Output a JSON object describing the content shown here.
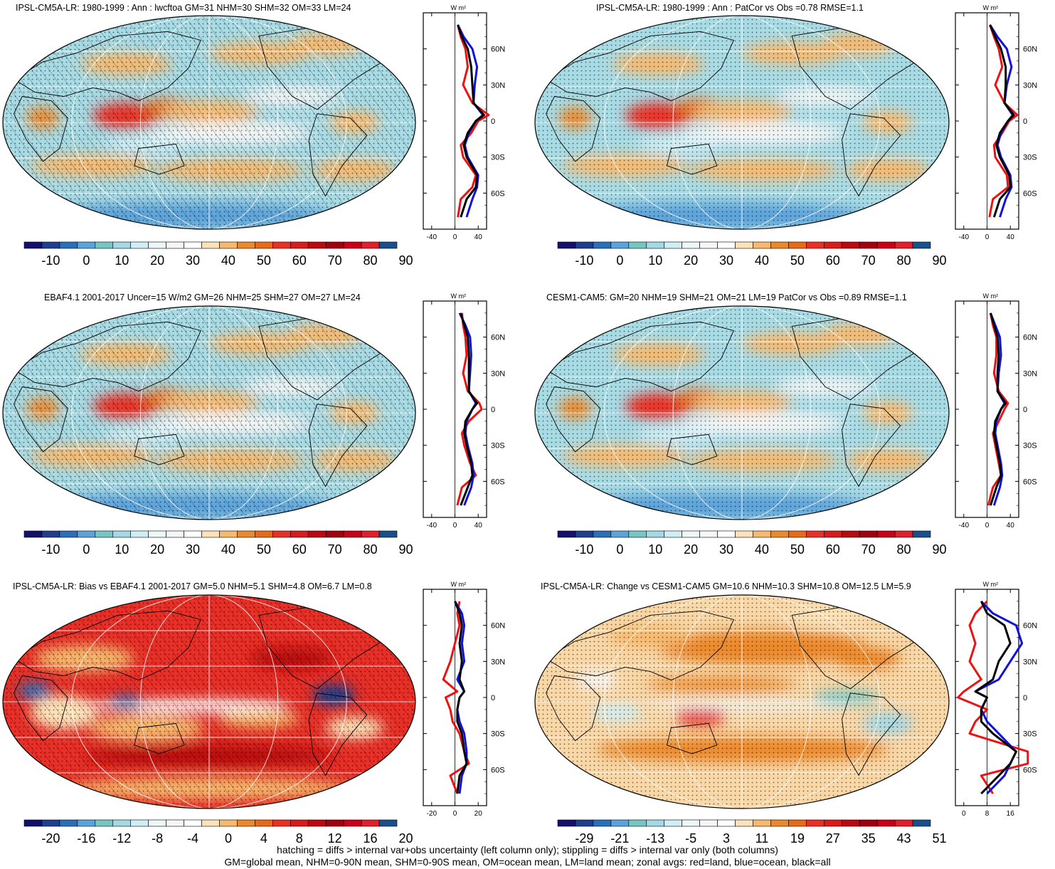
{
  "panels": [
    {
      "title": "IPSL-CM5A-LR: 1980-1999 : Ann : lwcftoa GM=31 NHM=30 SHM=32 OM=33 LM=24",
      "colorbar_ticks": [
        "-10",
        "0",
        "10",
        "20",
        "30",
        "40",
        "50",
        "60",
        "70",
        "80",
        "90"
      ],
      "profile_xticks": [
        "-40",
        "0",
        "40"
      ],
      "profile_unit": "W m²",
      "hatched": true,
      "palette": "positive"
    },
    {
      "title": "IPSL-CM5A-LR: 1980-1999 : Ann : PatCor vs Obs =0.78 RMSE=1.1",
      "colorbar_ticks": [
        "-10",
        "0",
        "10",
        "20",
        "30",
        "40",
        "50",
        "60",
        "70",
        "80",
        "90"
      ],
      "profile_xticks": [
        "-40",
        "0",
        "40"
      ],
      "profile_unit": "W m²",
      "hatched": false,
      "palette": "positive"
    },
    {
      "title": "EBAF4.1 2001-2017 Uncer=15 W/m2 GM=26 NHM=25 SHM=27 OM=27 LM=24",
      "colorbar_ticks": [
        "-10",
        "0",
        "10",
        "20",
        "30",
        "40",
        "50",
        "60",
        "70",
        "80",
        "90"
      ],
      "profile_xticks": [
        "-40",
        "0",
        "40"
      ],
      "profile_unit": "W m²",
      "hatched": true,
      "palette": "positive"
    },
    {
      "title": "CESM1-CAM5: GM=20 NHM=19 SHM=21 OM=21 LM=19 PatCor vs Obs =0.89 RMSE=1.1",
      "colorbar_ticks": [
        "-10",
        "0",
        "10",
        "20",
        "30",
        "40",
        "50",
        "60",
        "70",
        "80",
        "90"
      ],
      "profile_xticks": [
        "-40",
        "0",
        "40"
      ],
      "profile_unit": "W m²",
      "hatched": false,
      "palette": "positive"
    },
    {
      "title": "IPSL-CM5A-LR: Bias vs EBAF4.1 2001-2017 GM=5.0 NHM=5.1 SHM=4.8 OM=6.7 LM=0.8",
      "colorbar_ticks": [
        "-20",
        "-16",
        "-12",
        "-8",
        "-4",
        "0",
        "4",
        "8",
        "12",
        "16",
        "20"
      ],
      "profile_xticks": [
        "-20",
        "0",
        "20"
      ],
      "profile_unit": "W m²",
      "hatched": true,
      "palette": "bias"
    },
    {
      "title": "IPSL-CM5A-LR: Change vs CESM1-CAM5 GM=10.6 NHM=10.3 SHM=10.8 OM=12.5 LM=5.9",
      "colorbar_ticks": [
        "-29",
        "-21",
        "-13",
        "-5",
        "3",
        "11",
        "19",
        "27",
        "35",
        "43",
        "51"
      ],
      "profile_xticks": [
        "0",
        "8",
        "16"
      ],
      "profile_unit": "W m²",
      "hatched": false,
      "palette": "change"
    }
  ],
  "latitude_ticks": [
    "60N",
    "30N",
    "0",
    "30S",
    "60S"
  ],
  "colors": {
    "scale": [
      "#15106b",
      "#1f3f8c",
      "#2c6fb8",
      "#5da2d8",
      "#77c6c4",
      "#a6d7e4",
      "#d2eef5",
      "#eef6f8",
      "#f6f6f6",
      "#ffffff",
      "#fbe2b9",
      "#f6b970",
      "#ea8a2f",
      "#e66a1b",
      "#e73128",
      "#d61c1c",
      "#b80a10",
      "#a00010",
      "#c8001a",
      "#e0202c",
      "#1a4f8a"
    ],
    "land_profile": "#ee1111",
    "ocean_profile": "#1111dd",
    "all_profile": "#000000"
  },
  "chart_data": [
    {
      "type": "heatmap",
      "title": "IPSL-CM5A-LR: 1980-1999 : Ann : lwcftoa GM=31 NHM=30 SHM=32 OM=33 LM=24",
      "levels": [
        -10,
        0,
        10,
        20,
        30,
        40,
        50,
        60,
        70,
        80,
        90
      ],
      "zonal_lat": [
        80,
        70,
        60,
        45,
        30,
        15,
        5,
        0,
        -10,
        -20,
        -30,
        -45,
        -55,
        -65,
        -80
      ],
      "zonal_all": [
        5,
        12,
        22,
        28,
        30,
        32,
        50,
        36,
        22,
        15,
        20,
        38,
        36,
        20,
        10
      ],
      "zonal_ocean": [
        5,
        15,
        30,
        38,
        34,
        32,
        48,
        36,
        24,
        17,
        22,
        40,
        38,
        30,
        20
      ],
      "zonal_land": [
        5,
        10,
        18,
        22,
        14,
        30,
        58,
        40,
        28,
        10,
        14,
        36,
        30,
        10,
        5
      ]
    },
    {
      "type": "heatmap",
      "title": "IPSL-CM5A-LR: 1980-1999 : Ann : PatCor vs Obs =0.78 RMSE=1.1",
      "levels": [
        -10,
        0,
        10,
        20,
        30,
        40,
        50,
        60,
        70,
        80,
        90
      ],
      "zonal_lat": [
        80,
        70,
        60,
        45,
        30,
        15,
        5,
        0,
        -10,
        -20,
        -30,
        -45,
        -55,
        -65,
        -80
      ],
      "zonal_all": [
        5,
        14,
        24,
        32,
        32,
        30,
        46,
        36,
        22,
        16,
        22,
        38,
        40,
        22,
        12
      ],
      "zonal_ocean": [
        5,
        18,
        34,
        42,
        34,
        30,
        44,
        36,
        24,
        18,
        24,
        40,
        42,
        32,
        22
      ],
      "zonal_land": [
        5,
        12,
        20,
        26,
        14,
        30,
        52,
        38,
        26,
        12,
        14,
        34,
        36,
        10,
        4
      ]
    },
    {
      "type": "heatmap",
      "title": "EBAF4.1 2001-2017 Uncer=15 W/m2 GM=26 NHM=25 SHM=27 OM=27 LM=24",
      "levels": [
        -10,
        0,
        10,
        20,
        30,
        40,
        50,
        60,
        70,
        80,
        90
      ],
      "zonal_lat": [
        80,
        70,
        60,
        45,
        30,
        15,
        5,
        0,
        -10,
        -20,
        -30,
        -45,
        -55,
        -65,
        -80
      ],
      "zonal_all": [
        10,
        16,
        22,
        24,
        24,
        24,
        38,
        30,
        18,
        16,
        20,
        28,
        30,
        22,
        10
      ],
      "zonal_ocean": [
        8,
        18,
        26,
        28,
        26,
        24,
        36,
        30,
        20,
        18,
        22,
        30,
        32,
        28,
        16
      ],
      "zonal_land": [
        12,
        14,
        18,
        20,
        14,
        22,
        42,
        46,
        24,
        12,
        16,
        26,
        36,
        12,
        4
      ]
    },
    {
      "type": "heatmap",
      "title": "CESM1-CAM5: GM=20 NHM=19 SHM=21 OM=21 LM=19 PatCor vs Obs =0.89 RMSE=1.1",
      "levels": [
        -10,
        0,
        10,
        20,
        30,
        40,
        50,
        60,
        70,
        80,
        90
      ],
      "zonal_lat": [
        80,
        70,
        60,
        45,
        30,
        15,
        5,
        0,
        -10,
        -20,
        -30,
        -45,
        -55,
        -65,
        -80
      ],
      "zonal_all": [
        6,
        12,
        18,
        20,
        18,
        18,
        32,
        24,
        14,
        12,
        16,
        22,
        24,
        16,
        6
      ],
      "zonal_ocean": [
        6,
        14,
        22,
        24,
        20,
        18,
        30,
        24,
        16,
        14,
        18,
        24,
        26,
        22,
        12
      ],
      "zonal_land": [
        6,
        10,
        16,
        16,
        12,
        20,
        36,
        30,
        20,
        10,
        14,
        20,
        24,
        10,
        2
      ]
    },
    {
      "type": "heatmap",
      "title": "IPSL-CM5A-LR: Bias vs EBAF4.1 2001-2017 GM=5.0 NHM=5.1 SHM=4.8 OM=6.7 LM=0.8",
      "levels": [
        -20,
        -16,
        -12,
        -8,
        -4,
        0,
        4,
        8,
        12,
        16,
        20
      ],
      "zonal_lat": [
        80,
        70,
        60,
        45,
        30,
        15,
        5,
        0,
        -10,
        -20,
        -30,
        -45,
        -55,
        -65,
        -80
      ],
      "zonal_all": [
        0,
        4,
        6,
        4,
        6,
        4,
        8,
        4,
        2,
        2,
        6,
        8,
        10,
        4,
        2
      ],
      "zonal_ocean": [
        0,
        6,
        8,
        6,
        8,
        2,
        8,
        4,
        2,
        4,
        8,
        10,
        10,
        6,
        4
      ],
      "zonal_land": [
        4,
        2,
        4,
        0,
        -4,
        -10,
        2,
        -8,
        -4,
        -2,
        4,
        8,
        12,
        -4,
        2
      ]
    },
    {
      "type": "heatmap",
      "title": "IPSL-CM5A-LR: Change vs CESM1-CAM5 GM=10.6 NHM=10.3 SHM=10.8 OM=12.5 LM=5.9",
      "levels": [
        -29,
        -21,
        -13,
        -5,
        3,
        11,
        19,
        27,
        35,
        43,
        51
      ],
      "zonal_lat": [
        80,
        70,
        60,
        45,
        30,
        15,
        5,
        0,
        -10,
        -20,
        -30,
        -45,
        -55,
        -65,
        -80
      ],
      "zonal_all": [
        6,
        8,
        14,
        16,
        12,
        10,
        4,
        8,
        6,
        6,
        10,
        18,
        16,
        12,
        6
      ],
      "zonal_ocean": [
        6,
        10,
        18,
        20,
        16,
        12,
        4,
        8,
        6,
        8,
        12,
        18,
        16,
        14,
        8
      ],
      "zonal_land": [
        8,
        4,
        2,
        4,
        2,
        6,
        0,
        -2,
        8,
        4,
        2,
        22,
        22,
        6,
        10
      ]
    }
  ],
  "footer": {
    "line1": "hatching = diffs > internal var+obs uncertainty (left column only); stippling = diffs > internal var only (both columns)",
    "line2": "GM=global mean, NHM=0-90N mean, SHM=0-90S mean, OM=ocean mean, LM=land mean; zonal avgs: red=land, blue=ocean, black=all"
  }
}
